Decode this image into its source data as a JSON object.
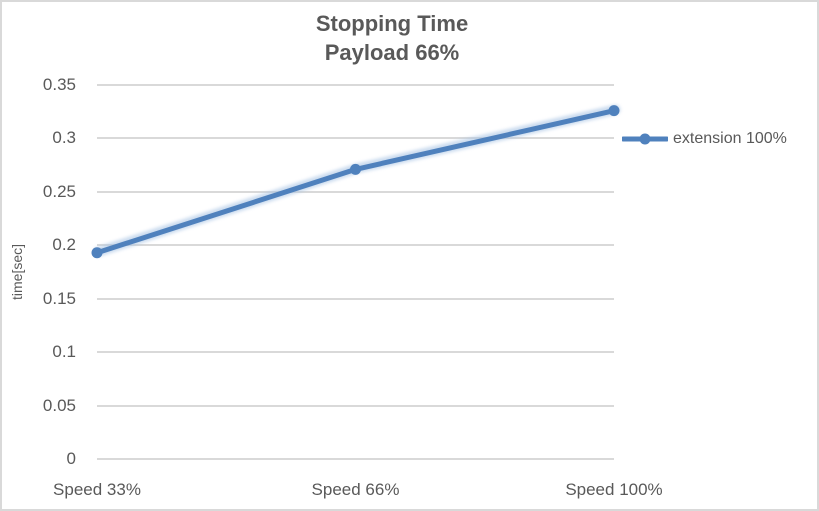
{
  "chart": {
    "title_line1": "Stopping Time",
    "title_line2": "Payload 66%",
    "y_axis_title": "time[sec]",
    "legend_label": "extension 100%"
  },
  "chart_data": {
    "type": "line",
    "title": "Stopping Time",
    "subtitle": "Payload 66%",
    "categories": [
      "Speed 33%",
      "Speed 66%",
      "Speed 100%"
    ],
    "series": [
      {
        "name": "extension 100%",
        "values": [
          0.193,
          0.271,
          0.326
        ]
      }
    ],
    "xlabel": "",
    "ylabel": "time[sec]",
    "ylim": [
      0,
      0.35
    ],
    "ytick_step": 0.05,
    "ytick_labels": [
      "0",
      "0.05",
      "0.1",
      "0.15",
      "0.2",
      "0.25",
      "0.3",
      "0.35"
    ],
    "grid": true,
    "legend_position": "right",
    "marker": "circle",
    "colors": {
      "line": "#4f81bd",
      "glow": "#a9c4e4",
      "gridline": "#d9d9d9",
      "text": "#595959",
      "border": "#d9d9d9",
      "background": "#ffffff"
    }
  }
}
